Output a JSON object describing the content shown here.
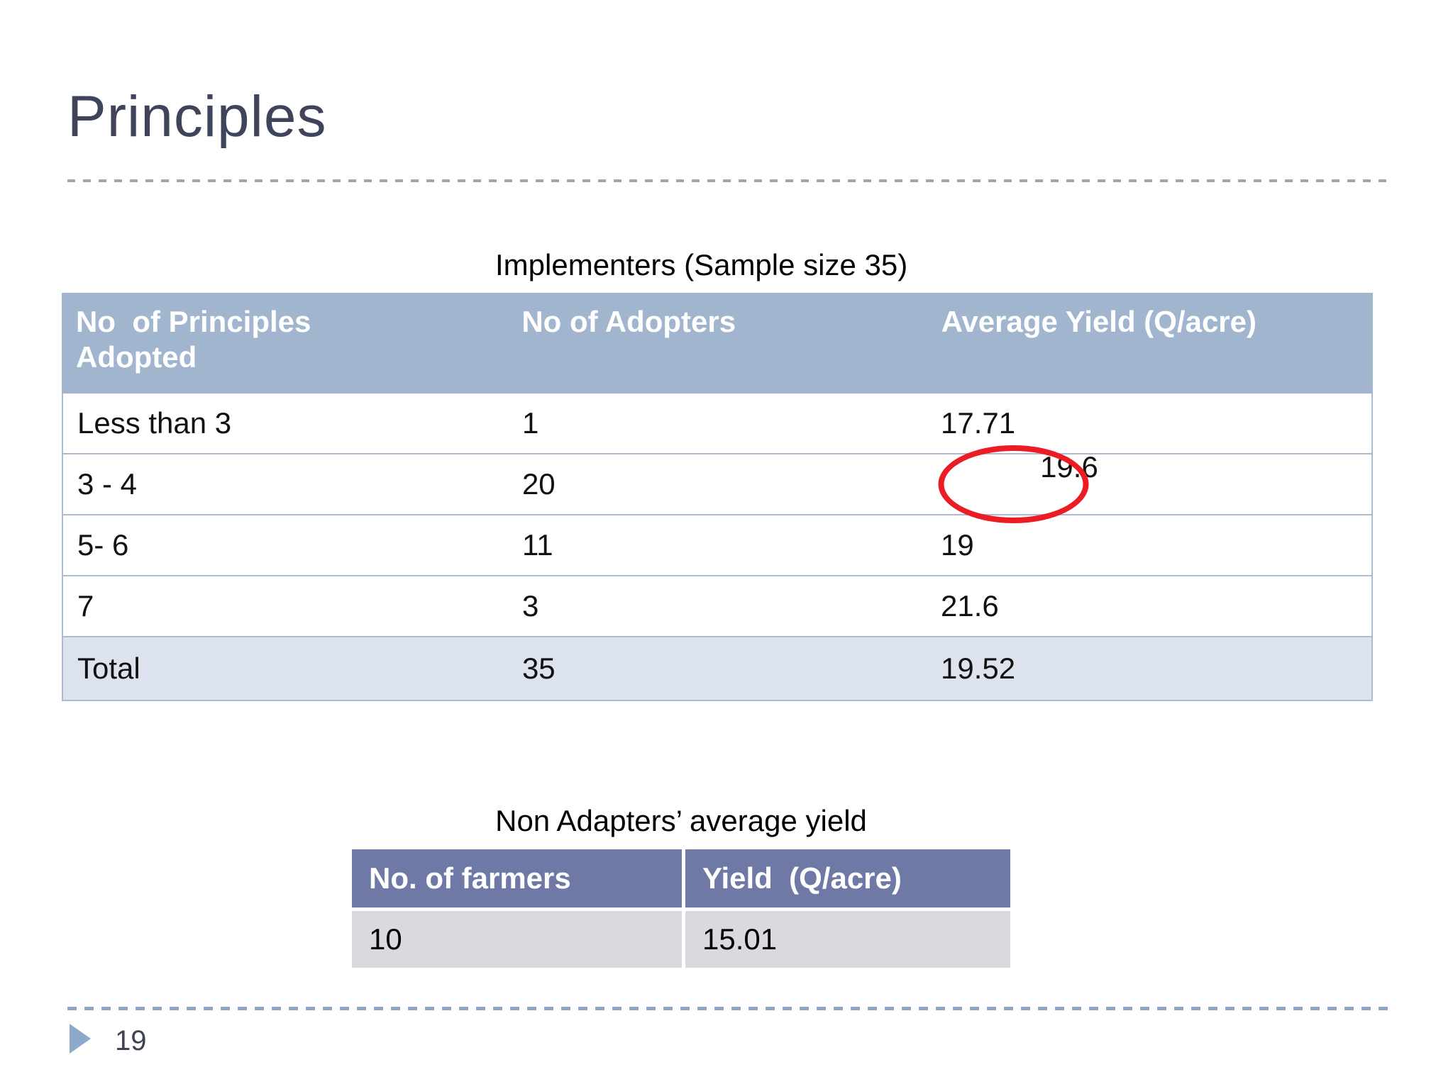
{
  "slide": {
    "title": "Principles",
    "page_number": "19"
  },
  "implementers": {
    "caption": "Implementers (Sample size 35)",
    "columns": [
      "No  of Principles Adopted",
      "No of Adopters",
      "Average Yield (Q/acre)"
    ],
    "rows": [
      {
        "principles": "Less than 3",
        "adopters": "1",
        "avg_yield": "17.71"
      },
      {
        "principles": "3 - 4",
        "adopters": "20",
        "avg_yield": "19.6"
      },
      {
        "principles": "5- 6",
        "adopters": "11",
        "avg_yield": "19"
      },
      {
        "principles": "7",
        "adopters": "3",
        "avg_yield": "21.6"
      }
    ],
    "total_row": {
      "principles": "Total",
      "adopters": "35",
      "avg_yield": "19.52"
    },
    "highlight": {
      "circled_value": "19.6",
      "shape": "ellipse",
      "color": "#EC1C24"
    }
  },
  "non_adapters": {
    "caption": "Non Adapters’ average yield",
    "columns": [
      "No. of farmers",
      "Yield  (Q/acre)"
    ],
    "rows": [
      {
        "farmers": "10",
        "yield_value": "15.01"
      }
    ]
  },
  "colors": {
    "table1_header_bg": "#A2B5CE",
    "table1_total_bg": "#DCE2EE",
    "table1_border": "#A9BCD3",
    "table2_header_bg": "#6E79A6",
    "table2_row_bg": "#D8DAE0",
    "annotation_red": "#EC1C24",
    "title_text": "#40445A",
    "footer_accent": "#8DA9CA"
  }
}
